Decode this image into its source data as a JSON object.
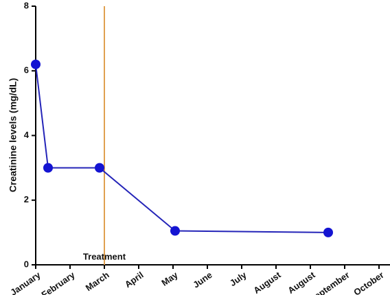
{
  "chart_data": {
    "type": "line",
    "y_label": "Creatinine levels (mg/dL)",
    "x": [
      0,
      0.36,
      1.86,
      4.06,
      8.52
    ],
    "series": [
      {
        "name": "Creatinine",
        "color": "#2424b8",
        "marker_color": "#1414d2",
        "values": [
          6.2,
          3,
          3,
          1.05,
          1
        ]
      }
    ],
    "xlim": [
      0,
      10
    ],
    "xticks": [
      {
        "value": 0,
        "label": "January"
      },
      {
        "value": 1,
        "label": "February"
      },
      {
        "value": 2,
        "label": "March"
      },
      {
        "value": 3,
        "label": "April"
      },
      {
        "value": 4,
        "label": "May"
      },
      {
        "value": 5,
        "label": "June"
      },
      {
        "value": 6,
        "label": "July"
      },
      {
        "value": 7,
        "label": "August"
      },
      {
        "value": 8,
        "label": "August"
      },
      {
        "value": 9,
        "label": "September"
      },
      {
        "value": 10,
        "label": "October"
      }
    ],
    "ylim": [
      0,
      8
    ],
    "yticks": [
      0,
      2,
      4,
      6,
      8
    ],
    "annotations": [
      {
        "text": "Treatment",
        "x": 2,
        "color": "#e0a050"
      }
    ]
  }
}
